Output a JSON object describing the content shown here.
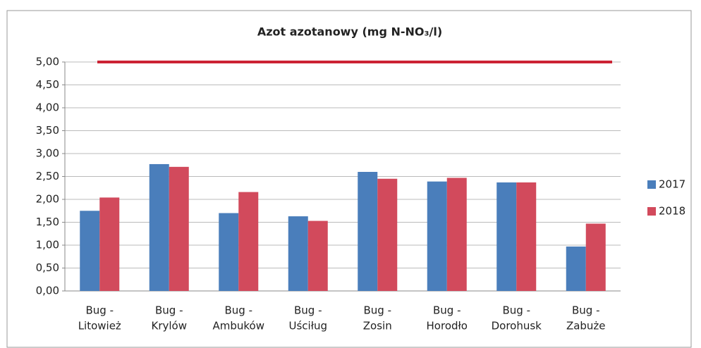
{
  "chart_data": {
    "type": "bar",
    "title": "Azot azotanowy (mg N-NO₃/l)",
    "categories": [
      [
        "Bug -",
        "Litowież"
      ],
      [
        "Bug -",
        "Krylów"
      ],
      [
        "Bug -",
        "Ambuków"
      ],
      [
        "Bug -",
        "Uściług"
      ],
      [
        "Bug -",
        "Zosin"
      ],
      [
        "Bug -",
        "Horodło"
      ],
      [
        "Bug -",
        "Dorohusk"
      ],
      [
        "Bug -",
        "Zabuże"
      ]
    ],
    "series": [
      {
        "name": "2017",
        "color": "#4a7ebb",
        "values": [
          1.75,
          2.77,
          1.7,
          1.63,
          2.6,
          2.39,
          2.37,
          0.97
        ]
      },
      {
        "name": "2018",
        "color": "#d24a5c",
        "values": [
          2.04,
          2.71,
          2.16,
          1.53,
          2.45,
          2.47,
          2.37,
          1.47
        ]
      }
    ],
    "hlines": [
      {
        "value": 5,
        "color": "#cc2233"
      }
    ],
    "ylim": [
      0,
      5
    ],
    "yticks": [
      {
        "value": 0,
        "label": "0,00"
      },
      {
        "value": 0.5,
        "label": "0,50"
      },
      {
        "value": 1,
        "label": "1,00"
      },
      {
        "value": 1.5,
        "label": "1,50"
      },
      {
        "value": 2,
        "label": "2,00"
      },
      {
        "value": 2.5,
        "label": "2,50"
      },
      {
        "value": 3,
        "label": "3,00"
      },
      {
        "value": 3.5,
        "label": "3,50"
      },
      {
        "value": 4,
        "label": "4,00"
      },
      {
        "value": 4.5,
        "label": "4,50"
      },
      {
        "value": 5,
        "label": "5,00"
      }
    ],
    "grid": true,
    "legend": "right"
  }
}
